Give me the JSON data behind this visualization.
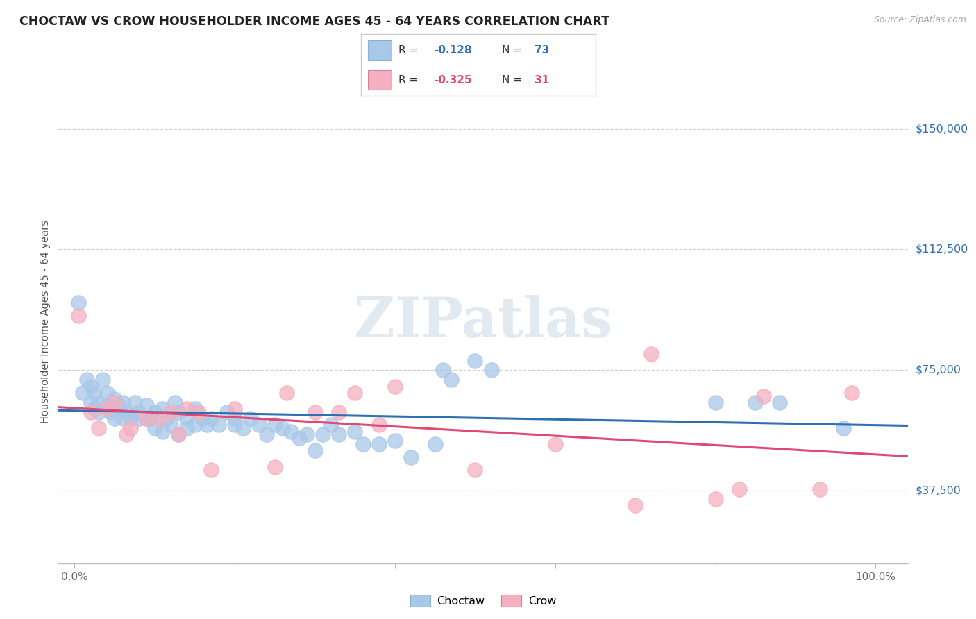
{
  "title": "CHOCTAW VS CROW HOUSEHOLDER INCOME AGES 45 - 64 YEARS CORRELATION CHART",
  "source": "Source: ZipAtlas.com",
  "ylabel": "Householder Income Ages 45 - 64 years",
  "ytick_labels": [
    "$37,500",
    "$75,000",
    "$112,500",
    "$150,000"
  ],
  "ytick_values": [
    37500,
    75000,
    112500,
    150000
  ],
  "ylim": [
    15000,
    165000
  ],
  "xlim": [
    -0.02,
    1.04
  ],
  "choctaw_color": "#a8c8e8",
  "crow_color": "#f4afc0",
  "choctaw_line_color": "#3070b0",
  "crow_line_color": "#e04878",
  "background_color": "#ffffff",
  "grid_color": "#d0d0d0",
  "choctaw_x": [
    0.005,
    0.01,
    0.015,
    0.02,
    0.02,
    0.025,
    0.025,
    0.03,
    0.03,
    0.035,
    0.04,
    0.04,
    0.045,
    0.05,
    0.05,
    0.055,
    0.06,
    0.06,
    0.065,
    0.07,
    0.075,
    0.08,
    0.08,
    0.09,
    0.09,
    0.095,
    0.1,
    0.1,
    0.11,
    0.11,
    0.115,
    0.12,
    0.125,
    0.13,
    0.13,
    0.14,
    0.14,
    0.15,
    0.15,
    0.16,
    0.165,
    0.17,
    0.18,
    0.19,
    0.2,
    0.2,
    0.21,
    0.22,
    0.23,
    0.24,
    0.25,
    0.26,
    0.27,
    0.28,
    0.29,
    0.3,
    0.31,
    0.32,
    0.33,
    0.35,
    0.36,
    0.38,
    0.4,
    0.42,
    0.45,
    0.46,
    0.47,
    0.5,
    0.52,
    0.8,
    0.85,
    0.88,
    0.96
  ],
  "choctaw_y": [
    96000,
    68000,
    72000,
    65000,
    70000,
    63000,
    68000,
    62000,
    65000,
    72000,
    64000,
    68000,
    62000,
    60000,
    66000,
    64000,
    60000,
    65000,
    62000,
    60000,
    65000,
    62000,
    60000,
    60000,
    64000,
    60000,
    57000,
    62000,
    56000,
    63000,
    60000,
    58000,
    65000,
    55000,
    62000,
    57000,
    60000,
    58000,
    63000,
    60000,
    58000,
    60000,
    58000,
    62000,
    60000,
    58000,
    57000,
    60000,
    58000,
    55000,
    58000,
    57000,
    56000,
    54000,
    55000,
    50000,
    55000,
    58000,
    55000,
    56000,
    52000,
    52000,
    53000,
    48000,
    52000,
    75000,
    72000,
    78000,
    75000,
    65000,
    65000,
    65000,
    57000
  ],
  "crow_x": [
    0.005,
    0.02,
    0.03,
    0.04,
    0.05,
    0.065,
    0.07,
    0.09,
    0.105,
    0.12,
    0.13,
    0.14,
    0.155,
    0.17,
    0.2,
    0.25,
    0.265,
    0.3,
    0.33,
    0.35,
    0.38,
    0.4,
    0.5,
    0.6,
    0.7,
    0.72,
    0.8,
    0.83,
    0.86,
    0.93,
    0.97
  ],
  "crow_y": [
    92000,
    62000,
    57000,
    63000,
    65000,
    55000,
    57000,
    60000,
    60000,
    62000,
    55000,
    63000,
    62000,
    44000,
    63000,
    45000,
    68000,
    62000,
    62000,
    68000,
    58000,
    70000,
    44000,
    52000,
    33000,
    80000,
    35000,
    38000,
    67000,
    38000,
    68000
  ],
  "legend_R1": "R =  -0.128",
  "legend_N1": "N = 73",
  "legend_R2": "R =  -0.325",
  "legend_N2": "N = 31",
  "watermark": "ZIPatlas"
}
